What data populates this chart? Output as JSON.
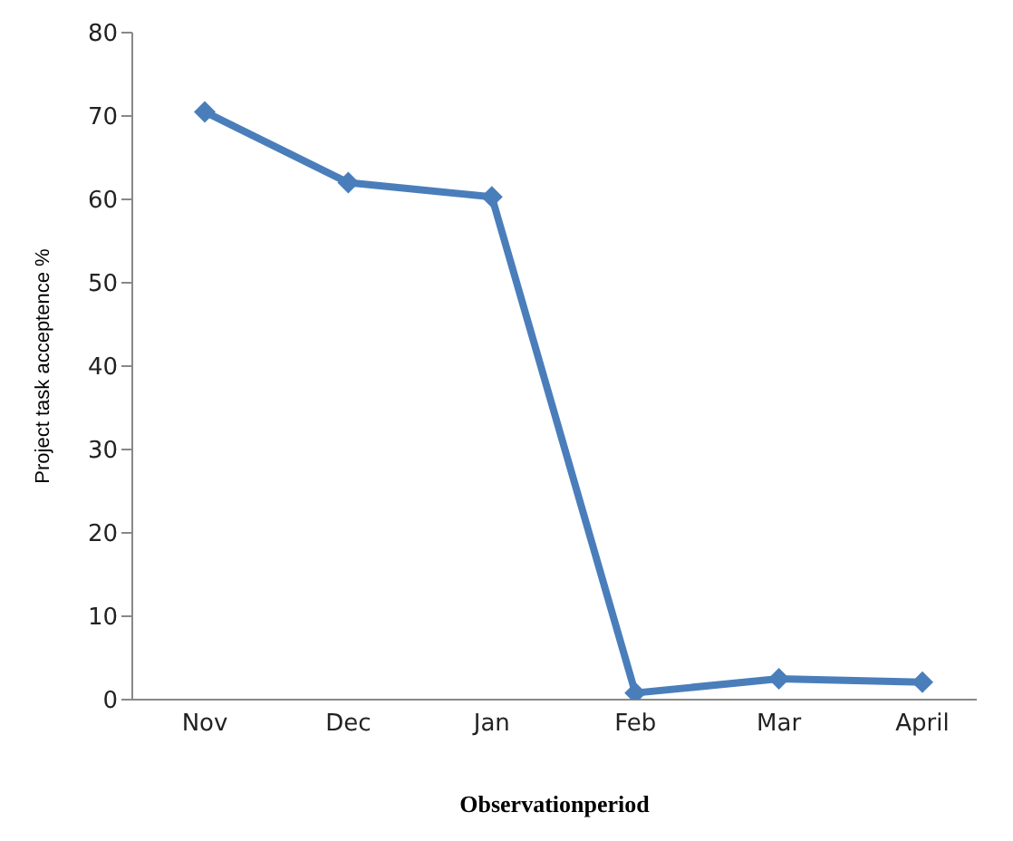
{
  "chart_data": {
    "type": "line",
    "xlabel": "Observationperiod",
    "ylabel": "Project task acceptence %",
    "categories": [
      "Nov",
      "Dec",
      "Jan",
      "Feb",
      "Mar",
      "April"
    ],
    "series": [
      {
        "color": "#4a7ebb",
        "values": [
          70.5,
          62,
          60.3,
          0.8,
          2.5,
          2.1
        ]
      }
    ],
    "ylim": [
      0,
      80
    ],
    "yticks": [
      0,
      10,
      20,
      30,
      40,
      50,
      60,
      70,
      80
    ],
    "grid": false,
    "legend": false,
    "marker": "diamond",
    "line_style": "solid"
  }
}
